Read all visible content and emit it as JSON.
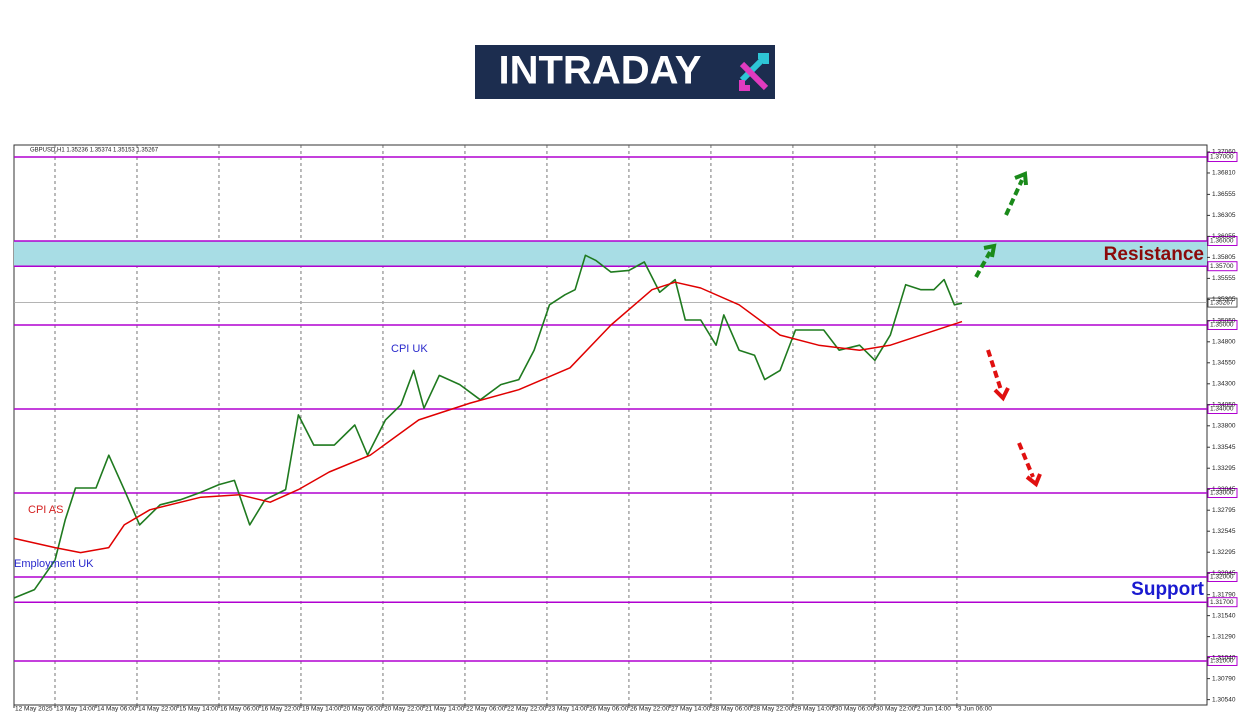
{
  "logo": "INTRADAY",
  "chart_data": {
    "type": "line",
    "header": "GBPUSD,H1  1.35236 1.35374 1.35153 1.35267",
    "annotations": {
      "cpi_uk": "CPI UK",
      "cpi_as": "CPI AS",
      "employment_uk": "Employment UK",
      "resistance": "Resistance",
      "support": "Support"
    },
    "xlim": [
      0,
      465.6
    ],
    "ylim": [
      1.30476,
      1.37143
    ],
    "xticks": [
      {
        "value": 0,
        "label": "12 May 2025"
      },
      {
        "value": 16,
        "label": "13 May 14:00"
      },
      {
        "value": 32,
        "label": "14 May 06:00"
      },
      {
        "value": 48,
        "label": "14 May 22:00"
      },
      {
        "value": 64,
        "label": "15 May 14:00"
      },
      {
        "value": 80,
        "label": "16 May 06:00"
      },
      {
        "value": 96,
        "label": "16 May 22:00"
      },
      {
        "value": 112,
        "label": "19 May 14:00"
      },
      {
        "value": 128,
        "label": "20 May 06:00"
      },
      {
        "value": 144,
        "label": "20 May 22:00"
      },
      {
        "value": 160,
        "label": "21 May 14:00"
      },
      {
        "value": 176,
        "label": "22 May 06:00"
      },
      {
        "value": 192,
        "label": "22 May 22:00"
      },
      {
        "value": 208,
        "label": "23 May 14:00"
      },
      {
        "value": 224,
        "label": "26 May 06:00"
      },
      {
        "value": 240,
        "label": "26 May 22:00"
      },
      {
        "value": 256,
        "label": "27 May 14:00"
      },
      {
        "value": 272,
        "label": "28 May 06:00"
      },
      {
        "value": 288,
        "label": "28 May 22:00"
      },
      {
        "value": 304,
        "label": "29 May 14:00"
      },
      {
        "value": 320,
        "label": "30 May 06:00"
      },
      {
        "value": 336,
        "label": "30 May 22:00"
      },
      {
        "value": 352,
        "label": "2 Jun 14:00"
      },
      {
        "value": 368,
        "label": "3 Jun 06:00"
      }
    ],
    "yticks": [
      {
        "value": 1.3706,
        "label": "1.37060"
      },
      {
        "value": 1.3681,
        "label": "1.36810"
      },
      {
        "value": 1.36555,
        "label": "1.36555"
      },
      {
        "value": 1.36305,
        "label": "1.36305"
      },
      {
        "value": 1.36055,
        "label": "1.36055"
      },
      {
        "value": 1.35805,
        "label": "1.35805"
      },
      {
        "value": 1.35555,
        "label": "1.35555"
      },
      {
        "value": 1.35305,
        "label": "1.35305"
      },
      {
        "value": 1.3505,
        "label": "1.35050"
      },
      {
        "value": 1.348,
        "label": "1.34800"
      },
      {
        "value": 1.3455,
        "label": "1.34550"
      },
      {
        "value": 1.343,
        "label": "1.34300"
      },
      {
        "value": 1.3405,
        "label": "1.34050"
      },
      {
        "value": 1.338,
        "label": "1.33800"
      },
      {
        "value": 1.33545,
        "label": "1.33545"
      },
      {
        "value": 1.33295,
        "label": "1.33295"
      },
      {
        "value": 1.33045,
        "label": "1.33045"
      },
      {
        "value": 1.32795,
        "label": "1.32795"
      },
      {
        "value": 1.32545,
        "label": "1.32545"
      },
      {
        "value": 1.32295,
        "label": "1.32295"
      },
      {
        "value": 1.32045,
        "label": "1.32045"
      },
      {
        "value": 1.3179,
        "label": "1.31790"
      },
      {
        "value": 1.3154,
        "label": "1.31540"
      },
      {
        "value": 1.3129,
        "label": "1.31290"
      },
      {
        "value": 1.3104,
        "label": "1.31040"
      },
      {
        "value": 1.3079,
        "label": "1.30790"
      },
      {
        "value": 1.3054,
        "label": "1.30540"
      }
    ],
    "levels": [
      {
        "value": 1.37,
        "label": "1.37000"
      },
      {
        "value": 1.36,
        "label": "1.36000"
      },
      {
        "value": 1.357,
        "label": "1.35700"
      },
      {
        "value": 1.35,
        "label": "1.35000"
      },
      {
        "value": 1.34,
        "label": "1.34000"
      },
      {
        "value": 1.33,
        "label": "1.33000"
      },
      {
        "value": 1.32,
        "label": "1.32000"
      },
      {
        "value": 1.317,
        "label": "1.31700"
      },
      {
        "value": 1.31,
        "label": "1.31000"
      }
    ],
    "level_color": "#b000d0",
    "zone_color": "#a8dde5",
    "last_price": {
      "value": 1.35267,
      "label": "1.35267"
    },
    "series": [
      {
        "color": "#1f7a1f",
        "x": [
          0,
          8,
          16,
          20,
          24,
          32,
          37,
          43,
          49,
          57,
          65,
          73,
          80,
          86,
          92,
          98,
          106,
          111,
          117,
          125,
          133,
          138,
          145,
          151,
          156,
          160,
          166,
          174,
          182,
          190,
          197,
          203,
          209,
          215,
          219,
          223,
          227,
          233,
          240,
          246,
          252,
          258,
          262,
          268,
          274,
          277,
          283,
          289,
          293,
          299,
          305,
          311,
          316,
          322,
          330,
          336,
          342,
          348,
          354,
          359,
          363,
          367,
          370
        ],
        "values": [
          1.3175,
          1.3185,
          1.322,
          1.3268,
          1.3306,
          1.3306,
          1.3345,
          1.3304,
          1.3262,
          1.3286,
          1.3292,
          1.3301,
          1.331,
          1.3315,
          1.3262,
          1.3292,
          1.3304,
          1.3393,
          1.3357,
          1.3357,
          1.3381,
          1.3345,
          1.3387,
          1.3405,
          1.3446,
          1.3401,
          1.344,
          1.3429,
          1.3411,
          1.3429,
          1.3435,
          1.347,
          1.3524,
          1.3536,
          1.3542,
          1.3583,
          1.3577,
          1.3563,
          1.3565,
          1.3575,
          1.3539,
          1.3554,
          1.3506,
          1.3506,
          1.3476,
          1.3512,
          1.347,
          1.3464,
          1.3435,
          1.3446,
          1.3494,
          1.3494,
          1.3494,
          1.347,
          1.3476,
          1.3458,
          1.3488,
          1.3548,
          1.3542,
          1.3542,
          1.3554,
          1.3524,
          1.3526
        ]
      },
      {
        "color": "#e00000",
        "x": [
          0,
          16,
          26,
          37,
          43,
          53,
          73,
          88,
          100,
          111,
          123,
          139,
          158,
          178,
          197,
          217,
          233,
          249,
          258,
          268,
          283,
          299,
          314,
          330,
          342,
          354,
          370
        ],
        "values": [
          1.3246,
          1.3235,
          1.3229,
          1.3235,
          1.3262,
          1.328,
          1.3295,
          1.3298,
          1.3289,
          1.3304,
          1.3325,
          1.3345,
          1.3387,
          1.3407,
          1.3423,
          1.3449,
          1.35,
          1.3542,
          1.3551,
          1.3544,
          1.3524,
          1.3488,
          1.3476,
          1.347,
          1.3476,
          1.3488,
          1.3504
        ]
      }
    ]
  }
}
